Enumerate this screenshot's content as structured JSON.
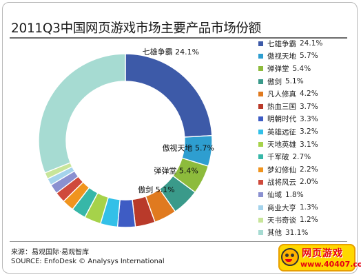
{
  "title": "2011Q3中国网页游戏市场主要产品市场份额",
  "source_cn": "来源：易观国际·易观智库",
  "source_en": "SOURCE: EnfoDesk © Analysys International",
  "logo": {
    "main": "网页游戏",
    "sub": "www.40407.com"
  },
  "chart_data": {
    "type": "donut",
    "legend_position": "right",
    "series": [
      {
        "label": "七雄争霸",
        "value": 24.1,
        "display": "24.1%",
        "color": "#3d5aa8"
      },
      {
        "label": "傲视天地",
        "value": 5.7,
        "display": "5.7%",
        "color": "#2e9ed0"
      },
      {
        "label": "弹弹堂",
        "value": 5.4,
        "display": "5.4%",
        "color": "#8dbb3c"
      },
      {
        "label": "傲剑",
        "value": 5.1,
        "display": "5.1%",
        "color": "#3a9a8a"
      },
      {
        "label": "凡人修真",
        "value": 4.2,
        "display": "4.2%",
        "color": "#e07a1f"
      },
      {
        "label": "热血三国",
        "value": 3.7,
        "display": "3.7%",
        "color": "#b93a2a"
      },
      {
        "label": "明朝时代",
        "value": 3.3,
        "display": "3.3%",
        "color": "#3e5cc4"
      },
      {
        "label": "英雄远征",
        "value": 3.2,
        "display": "3.2%",
        "color": "#33c0e8"
      },
      {
        "label": "天地英雄",
        "value": 3.1,
        "display": "3.1%",
        "color": "#a6d24a"
      },
      {
        "label": "千军破",
        "value": 2.7,
        "display": "2.7%",
        "color": "#37b7a8"
      },
      {
        "label": "梦幻修仙",
        "value": 2.2,
        "display": "2.2%",
        "color": "#f0941e"
      },
      {
        "label": "战将风云",
        "value": 2.0,
        "display": "2.0%",
        "color": "#cf4a3c"
      },
      {
        "label": "仙域",
        "value": 1.8,
        "display": "1.8%",
        "color": "#8a90d0"
      },
      {
        "label": "商业大亨",
        "value": 1.3,
        "display": "1.3%",
        "color": "#a4d3ec"
      },
      {
        "label": "天书奇谈",
        "value": 1.2,
        "display": "1.2%",
        "color": "#c8e59a"
      },
      {
        "label": "其他",
        "value": 31.1,
        "display": "31.1%",
        "color": "#a6dbd2"
      }
    ],
    "slice_labels": [
      {
        "label": "七雄争霸",
        "display": "24.1%"
      },
      {
        "label": "傲视天地",
        "display": "5.7%"
      },
      {
        "label": "弹弹堂",
        "display": "5.4%"
      },
      {
        "label": "傲剑",
        "display": "5.1%"
      }
    ]
  }
}
